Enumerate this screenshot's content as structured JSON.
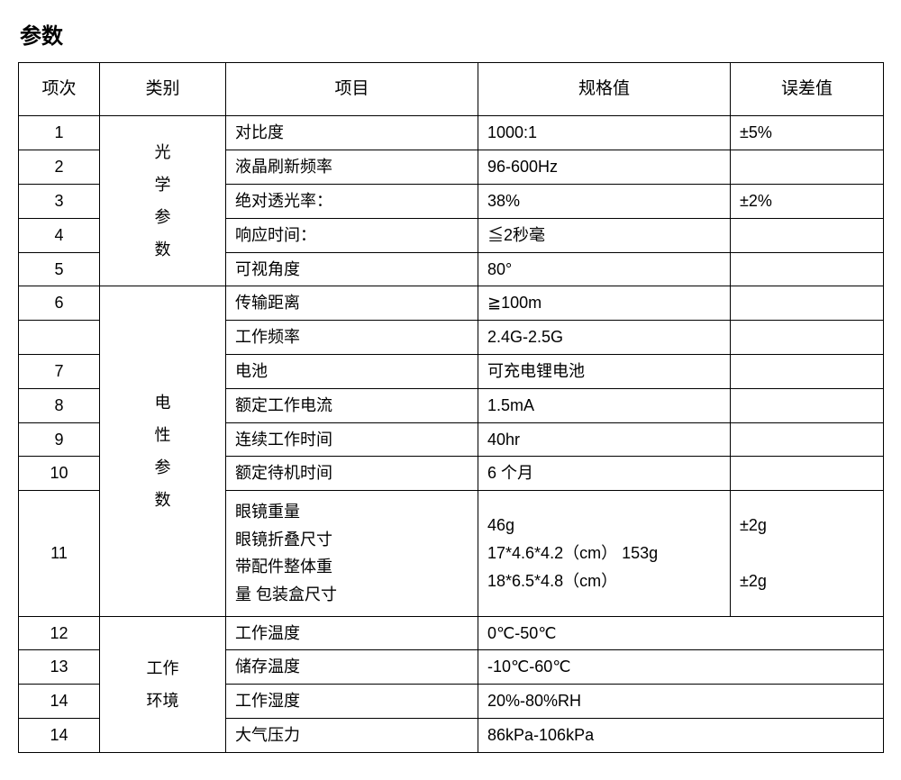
{
  "title": "参数",
  "headers": {
    "index": "项次",
    "category": "类别",
    "item": "项目",
    "spec": "规格值",
    "error": "误差值"
  },
  "categories": {
    "optical": "光\n学\n参\n数",
    "electrical": "电\n性\n参\n数",
    "env": "工作\n环境"
  },
  "rows": {
    "r1": {
      "idx": "1",
      "item": "对比度",
      "spec": "1000:1",
      "err": "±5%"
    },
    "r2": {
      "idx": "2",
      "item": "液晶刷新频率",
      "spec": "96-600Hz",
      "err": ""
    },
    "r3": {
      "idx": "3",
      "item": "绝对透光率：",
      "spec": "38%",
      "err": "±2%"
    },
    "r4": {
      "idx": "4",
      "item": "响应时间：",
      "spec": "≦2秒毫",
      "err": ""
    },
    "r5": {
      "idx": "5",
      "item": "可视角度",
      "spec": "80°",
      "err": ""
    },
    "r6": {
      "idx": "6",
      "item": "传输距离",
      "spec": "≧100m",
      "err": ""
    },
    "r6b": {
      "idx": "",
      "item": "工作频率",
      "spec": "2.4G-2.5G",
      "err": ""
    },
    "r7": {
      "idx": "7",
      "item": "电池",
      "spec": "可充电锂电池",
      "err": ""
    },
    "r8": {
      "idx": "8",
      "item": "额定工作电流",
      "spec": "1.5mA",
      "err": ""
    },
    "r9": {
      "idx": "9",
      "item": "连续工作时间",
      "spec": "40hr",
      "err": ""
    },
    "r10": {
      "idx": "10",
      "item": "额定待机时间",
      "spec": "6 个月",
      "err": ""
    },
    "r11": {
      "idx": "11",
      "item": "眼镜重量\n眼镜折叠尺寸\n带配件整体重\n量 包装盒尺寸",
      "spec": "46g\n17*4.6*4.2（cm） 153g\n18*6.5*4.8（cm）",
      "err": "±2g\n\n±2g"
    },
    "r12": {
      "idx": "12",
      "item": "工作温度",
      "spec": "0℃-50℃"
    },
    "r13": {
      "idx": "13",
      "item": "储存温度",
      "spec": "-10℃-60℃"
    },
    "r14": {
      "idx": "14",
      "item": "工作湿度",
      "spec": "20%-80%RH"
    },
    "r15": {
      "idx": "14",
      "item": "大气压力",
      "spec": "86kPa-106kPa"
    }
  },
  "colors": {
    "text": "#000000",
    "border": "#000000",
    "background": "#ffffff"
  },
  "font_sizes": {
    "title": 24,
    "header": 19,
    "cell": 18
  }
}
